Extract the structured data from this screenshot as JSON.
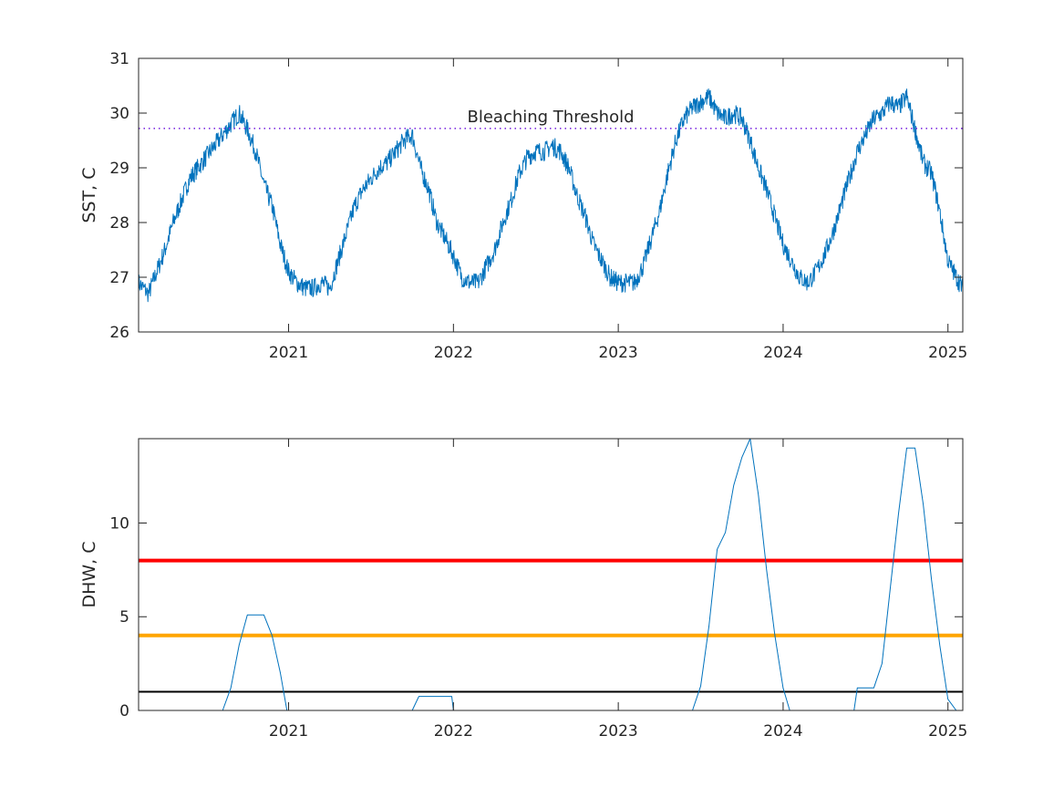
{
  "figure": {
    "background": "#ffffff",
    "axis_color": "#262626",
    "series_color": "#0072bd"
  },
  "chart_data": [
    {
      "type": "line",
      "title": "",
      "xlabel": "",
      "ylabel": "SST, C",
      "xlim": [
        2020.09,
        2025.09
      ],
      "ylim": [
        26,
        31
      ],
      "xticks": [
        2021,
        2022,
        2023,
        2024,
        2025
      ],
      "xtick_labels": [
        "2021",
        "2022",
        "2023",
        "2024",
        "2025"
      ],
      "yticks": [
        26,
        27,
        28,
        29,
        30,
        31
      ],
      "ytick_labels": [
        "26",
        "27",
        "28",
        "29",
        "30",
        "31"
      ],
      "grid": false,
      "series": [
        {
          "color": "#0072bd",
          "x": [
            2020.09,
            2020.15,
            2020.2,
            2020.25,
            2020.3,
            2020.35,
            2020.4,
            2020.45,
            2020.5,
            2020.55,
            2020.6,
            2020.65,
            2020.7,
            2020.75,
            2020.8,
            2020.85,
            2020.9,
            2020.95,
            2021.0,
            2021.05,
            2021.1,
            2021.15,
            2021.2,
            2021.25,
            2021.3,
            2021.35,
            2021.4,
            2021.45,
            2021.5,
            2021.55,
            2021.6,
            2021.65,
            2021.7,
            2021.75,
            2021.8,
            2021.85,
            2021.9,
            2021.95,
            2022.0,
            2022.05,
            2022.1,
            2022.15,
            2022.2,
            2022.25,
            2022.3,
            2022.35,
            2022.4,
            2022.45,
            2022.5,
            2022.55,
            2022.6,
            2022.65,
            2022.7,
            2022.75,
            2022.8,
            2022.85,
            2022.9,
            2022.95,
            2023.0,
            2023.05,
            2023.1,
            2023.15,
            2023.2,
            2023.25,
            2023.3,
            2023.35,
            2023.4,
            2023.45,
            2023.5,
            2023.55,
            2023.6,
            2023.65,
            2023.7,
            2023.75,
            2023.8,
            2023.85,
            2023.9,
            2023.95,
            2024.0,
            2024.05,
            2024.1,
            2024.15,
            2024.2,
            2024.25,
            2024.3,
            2024.35,
            2024.4,
            2024.45,
            2024.5,
            2024.55,
            2024.6,
            2024.65,
            2024.7,
            2024.75,
            2024.8,
            2024.85,
            2024.9,
            2024.95,
            2025.0,
            2025.05,
            2025.09
          ],
          "y": [
            26.9,
            26.7,
            27.1,
            27.5,
            28.0,
            28.4,
            28.8,
            29.0,
            29.2,
            29.4,
            29.6,
            29.8,
            30.0,
            29.7,
            29.3,
            28.7,
            28.3,
            27.6,
            27.1,
            26.9,
            26.8,
            26.8,
            26.9,
            26.8,
            27.3,
            27.8,
            28.3,
            28.6,
            28.8,
            29.0,
            29.1,
            29.3,
            29.5,
            29.6,
            29.0,
            28.6,
            28.0,
            27.7,
            27.4,
            27.0,
            26.9,
            26.9,
            27.2,
            27.5,
            28.0,
            28.4,
            28.9,
            29.2,
            29.3,
            29.3,
            29.4,
            29.3,
            29.0,
            28.5,
            28.1,
            27.6,
            27.3,
            27.0,
            26.9,
            26.9,
            26.9,
            27.2,
            27.7,
            28.2,
            28.9,
            29.5,
            29.9,
            30.1,
            30.2,
            30.3,
            30.0,
            29.9,
            30.0,
            29.9,
            29.5,
            29.0,
            28.6,
            28.1,
            27.6,
            27.3,
            27.0,
            26.9,
            27.1,
            27.4,
            27.8,
            28.3,
            28.8,
            29.3,
            29.6,
            29.9,
            30.0,
            30.2,
            30.1,
            30.3,
            29.7,
            29.1,
            28.9,
            28.2,
            27.3,
            27.0,
            26.8
          ]
        }
      ],
      "reference_lines": [
        {
          "label": "Bleaching Threshold",
          "y": 29.72,
          "style": "dotted",
          "color": "#7e2fe0"
        }
      ]
    },
    {
      "type": "line",
      "title": "",
      "xlabel": "",
      "ylabel": "DHW, C",
      "xlim": [
        2020.09,
        2025.09
      ],
      "ylim": [
        0,
        14.5
      ],
      "xticks": [
        2021,
        2022,
        2023,
        2024,
        2025
      ],
      "xtick_labels": [
        "2021",
        "2022",
        "2023",
        "2024",
        "2025"
      ],
      "yticks": [
        0,
        5,
        10
      ],
      "ytick_labels": [
        "0",
        "5",
        "10"
      ],
      "grid": false,
      "series": [
        {
          "color": "#0072bd",
          "x": [
            2020.09,
            2020.6,
            2020.65,
            2020.7,
            2020.75,
            2020.8,
            2020.85,
            2020.9,
            2020.95,
            2020.99,
            2021.75,
            2021.79,
            2021.99,
            2022.0,
            2023.45,
            2023.5,
            2023.55,
            2023.6,
            2023.65,
            2023.7,
            2023.75,
            2023.8,
            2023.85,
            2023.9,
            2023.95,
            2024.0,
            2024.04,
            2024.43,
            2024.45,
            2024.55,
            2024.6,
            2024.65,
            2024.7,
            2024.75,
            2024.8,
            2024.85,
            2024.9,
            2024.95,
            2025.0,
            2025.05,
            2025.09
          ],
          "y": [
            0,
            0,
            1.2,
            3.5,
            5.1,
            5.1,
            5.1,
            4.0,
            2.0,
            0,
            0,
            0.75,
            0.75,
            0,
            0,
            1.3,
            4.5,
            8.6,
            9.5,
            12.0,
            13.5,
            14.5,
            11.5,
            7.5,
            4.0,
            1.2,
            0,
            0,
            1.2,
            1.2,
            2.5,
            6.5,
            10.5,
            14.0,
            14.0,
            11.0,
            7.0,
            3.5,
            0.6,
            0,
            0
          ]
        }
      ],
      "reference_lines": [
        {
          "y": 8,
          "color": "#ff0000",
          "width": 4
        },
        {
          "y": 4,
          "color": "#ffa500",
          "width": 4
        },
        {
          "y": 1,
          "color": "#000000",
          "width": 2
        }
      ]
    }
  ]
}
